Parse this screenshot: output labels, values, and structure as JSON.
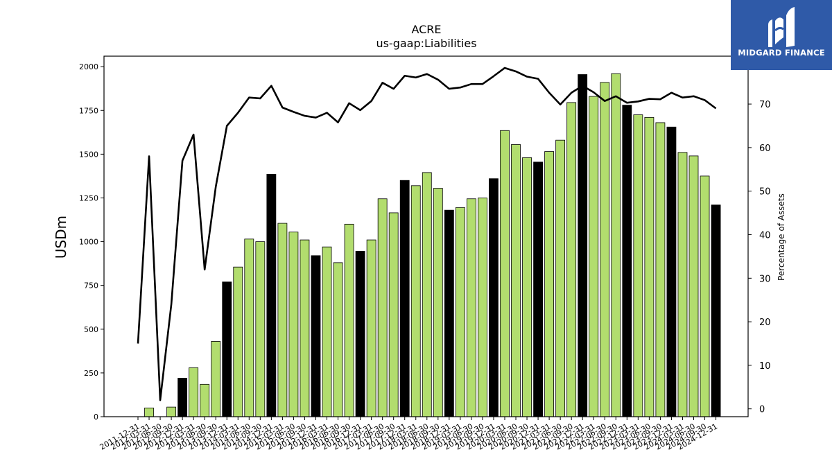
{
  "chart_data": {
    "type": "bar",
    "title": "ACRE",
    "subtitle": "us-gaap:Liabilities",
    "ylabel": "USDm",
    "y2label": "Percentage of Assets",
    "ylim": [
      0,
      2060
    ],
    "y2lim": [
      -1.8,
      81
    ],
    "yticks": [
      0,
      250,
      500,
      750,
      1000,
      1250,
      1500,
      1750,
      2000
    ],
    "y2ticks": [
      0,
      10,
      20,
      30,
      40,
      50,
      60,
      70
    ],
    "categories": [
      "2011-12-31",
      "2012-03-31",
      "2012-06-30",
      "2012-09-30",
      "2012-12-31",
      "2013-03-31",
      "2013-06-30",
      "2013-09-30",
      "2013-12-31",
      "2014-03-31",
      "2014-06-30",
      "2014-09-30",
      "2014-12-31",
      "2015-03-31",
      "2015-06-30",
      "2015-09-30",
      "2015-12-31",
      "2016-03-31",
      "2016-06-30",
      "2016-09-30",
      "2016-12-31",
      "2017-03-31",
      "2017-06-30",
      "2017-09-30",
      "2017-12-31",
      "2018-03-31",
      "2018-06-30",
      "2018-09-30",
      "2018-12-31",
      "2019-03-31",
      "2019-06-30",
      "2019-09-30",
      "2019-12-31",
      "2020-03-31",
      "2020-06-30",
      "2020-09-30",
      "2020-12-31",
      "2021-03-31",
      "2021-06-30",
      "2021-09-30",
      "2021-12-31",
      "2022-03-31",
      "2022-06-30",
      "2022-09-30",
      "2022-12-31",
      "2023-03-31",
      "2023-06-30",
      "2023-09-30",
      "2023-12-31",
      "2024-03-31",
      "2024-06-30",
      "2024-09-30",
      "2024-12-31"
    ],
    "series": [
      {
        "values": [
          0,
          50,
          0,
          55,
          220,
          280,
          185,
          430,
          770,
          855,
          1015,
          1000,
          1385,
          1105,
          1055,
          1010,
          920,
          970,
          880,
          1100,
          945,
          1010,
          1245,
          1165,
          1350,
          1320,
          1395,
          1305,
          1180,
          1195,
          1245,
          1250,
          1360,
          1635,
          1555,
          1480,
          1455,
          1515,
          1580,
          1795,
          1955,
          1830,
          1910,
          1960,
          1780,
          1725,
          1710,
          1680,
          1655,
          1510,
          1490,
          1375,
          1210
        ]
      },
      {
        "axis": "right",
        "type": "line",
        "values": [
          15,
          58,
          2,
          24,
          57,
          63,
          32,
          51,
          65,
          68,
          71.5,
          71.3,
          74.2,
          69.2,
          68.2,
          67.3,
          66.9,
          68,
          65.8,
          70.2,
          68.6,
          70.7,
          74.9,
          73.5,
          76.5,
          76.1,
          76.9,
          75.6,
          73.5,
          73.8,
          74.6,
          74.6,
          76.4,
          78.3,
          77.5,
          76.3,
          75.8,
          72.6,
          69.9,
          72.6,
          74.2,
          72.7,
          70.7,
          71.8,
          70.3,
          70.6,
          71.2,
          71.1,
          72.6,
          71.5,
          71.8,
          70.9,
          69
        ]
      }
    ],
    "highlight_indices": [
      4,
      8,
      12,
      16,
      20,
      24,
      28,
      32,
      36,
      40,
      44,
      48,
      52
    ],
    "colors": {
      "bar": "#b2dd6e",
      "bar_highlight": "#000000",
      "line": "#000000"
    }
  },
  "logo": {
    "text": "MIDGARD FINANCE",
    "icon": "midgard-logo-icon",
    "color": "#2f5aa8"
  }
}
